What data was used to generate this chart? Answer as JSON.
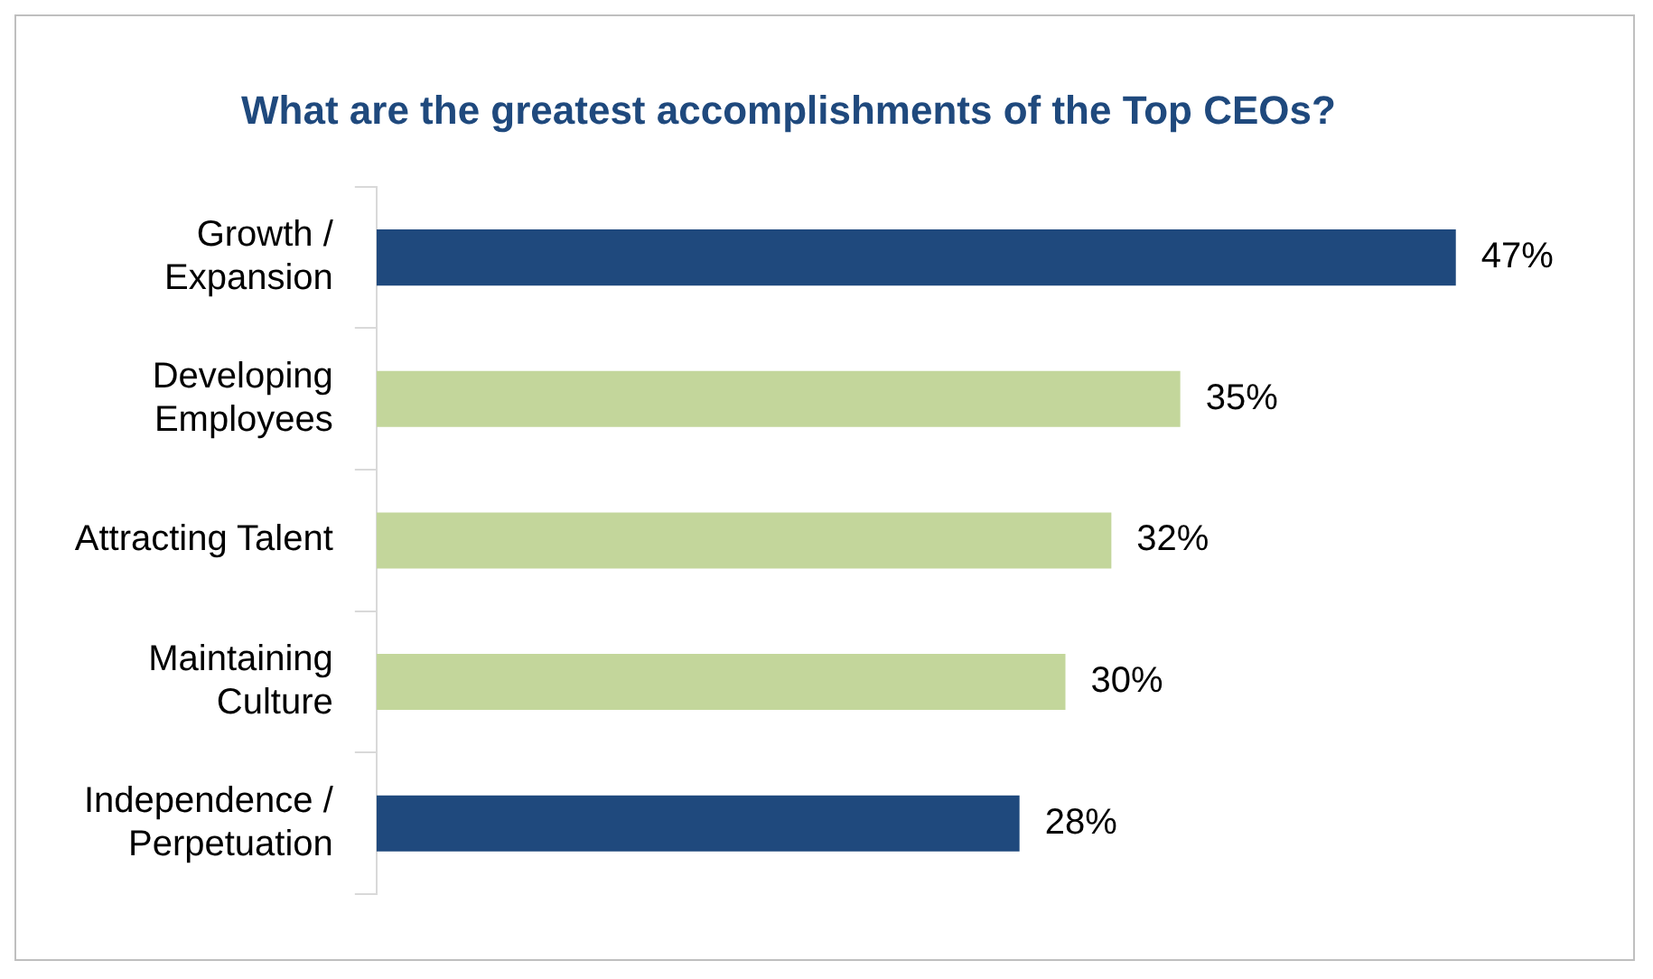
{
  "chart_data": {
    "type": "bar",
    "orientation": "horizontal",
    "title": "What are the greatest accomplishments of the Top CEOs?",
    "categories": [
      "Growth / Expansion",
      "Developing Employees",
      "Attracting Talent",
      "Maintaining Culture",
      "Independence / Perpetuation"
    ],
    "values": [
      47,
      35,
      32,
      30,
      28
    ],
    "colors": [
      "#1f497d",
      "#c3d69b",
      "#c3d69b",
      "#c3d69b",
      "#1f497d"
    ],
    "value_labels": [
      "47%",
      "35%",
      "32%",
      "30%",
      "28%"
    ],
    "tick_labels": "y",
    "legend": false
  }
}
